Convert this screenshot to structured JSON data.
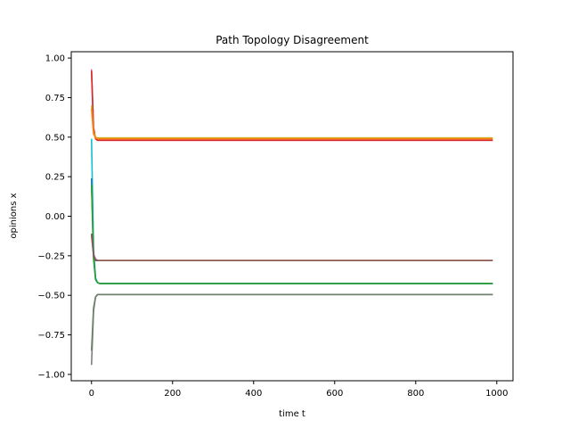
{
  "chart_data": {
    "type": "line",
    "title": "Path Topology Disagreement",
    "xlabel": "time t",
    "ylabel": "opinions x",
    "xlim": [
      -50,
      1040
    ],
    "ylim": [
      -1.04,
      1.04
    ],
    "grid": false,
    "x_ticks": [
      0,
      200,
      400,
      600,
      800,
      1000
    ],
    "y_ticks": [
      1.0,
      0.75,
      0.5,
      0.25,
      0.0,
      -0.25,
      -0.5,
      -0.75,
      -1.0
    ],
    "x_tick_labels": [
      "0",
      "200",
      "400",
      "600",
      "800",
      "1000"
    ],
    "y_tick_labels": [
      "1.00",
      "0.75",
      "0.50",
      "0.25",
      "0.00",
      "−0.25",
      "−0.50",
      "−0.75",
      "−1.00"
    ],
    "series": [
      {
        "color": "#e377c2",
        "x": [
          0,
          5,
          10,
          15,
          990
        ],
        "values": [
          0.93,
          0.55,
          0.49,
          0.48,
          0.48
        ]
      },
      {
        "color": "#d62728",
        "x": [
          0,
          5,
          10,
          15,
          990
        ],
        "values": [
          0.92,
          0.56,
          0.49,
          0.48,
          0.48
        ]
      },
      {
        "color": "#bcbd22",
        "x": [
          0,
          5,
          10,
          15,
          990
        ],
        "values": [
          0.7,
          0.53,
          0.5,
          0.495,
          0.495
        ]
      },
      {
        "color": "#ff7f0e",
        "x": [
          0,
          5,
          10,
          15,
          990
        ],
        "values": [
          0.68,
          0.52,
          0.495,
          0.49,
          0.49
        ]
      },
      {
        "color": "#17becf",
        "x": [
          0,
          5,
          10,
          15,
          20,
          990
        ],
        "values": [
          0.49,
          -0.2,
          -0.39,
          -0.42,
          -0.425,
          -0.425
        ]
      },
      {
        "color": "#1f77b4",
        "x": [
          0,
          5,
          10,
          15,
          20,
          990
        ],
        "values": [
          0.24,
          -0.25,
          -0.4,
          -0.42,
          -0.425,
          -0.425
        ]
      },
      {
        "color": "#2ca02c",
        "x": [
          0,
          5,
          10,
          15,
          20,
          990
        ],
        "values": [
          0.2,
          -0.27,
          -0.4,
          -0.42,
          -0.425,
          -0.425
        ]
      },
      {
        "color": "#9467bd",
        "x": [
          0,
          5,
          10,
          15,
          990
        ],
        "values": [
          -0.12,
          -0.24,
          -0.27,
          -0.28,
          -0.28
        ]
      },
      {
        "color": "#8c564b",
        "x": [
          0,
          5,
          10,
          15,
          990
        ],
        "values": [
          -0.11,
          -0.25,
          -0.28,
          -0.28,
          -0.28
        ]
      },
      {
        "color": "#7f7f7f",
        "x": [
          0,
          5,
          10,
          15,
          990
        ],
        "values": [
          -0.94,
          -0.6,
          -0.51,
          -0.495,
          -0.495
        ]
      },
      {
        "color": "#6b7f6b",
        "x": [
          0,
          5,
          10,
          15,
          990
        ],
        "values": [
          -0.85,
          -0.58,
          -0.51,
          -0.495,
          -0.495
        ]
      }
    ]
  }
}
